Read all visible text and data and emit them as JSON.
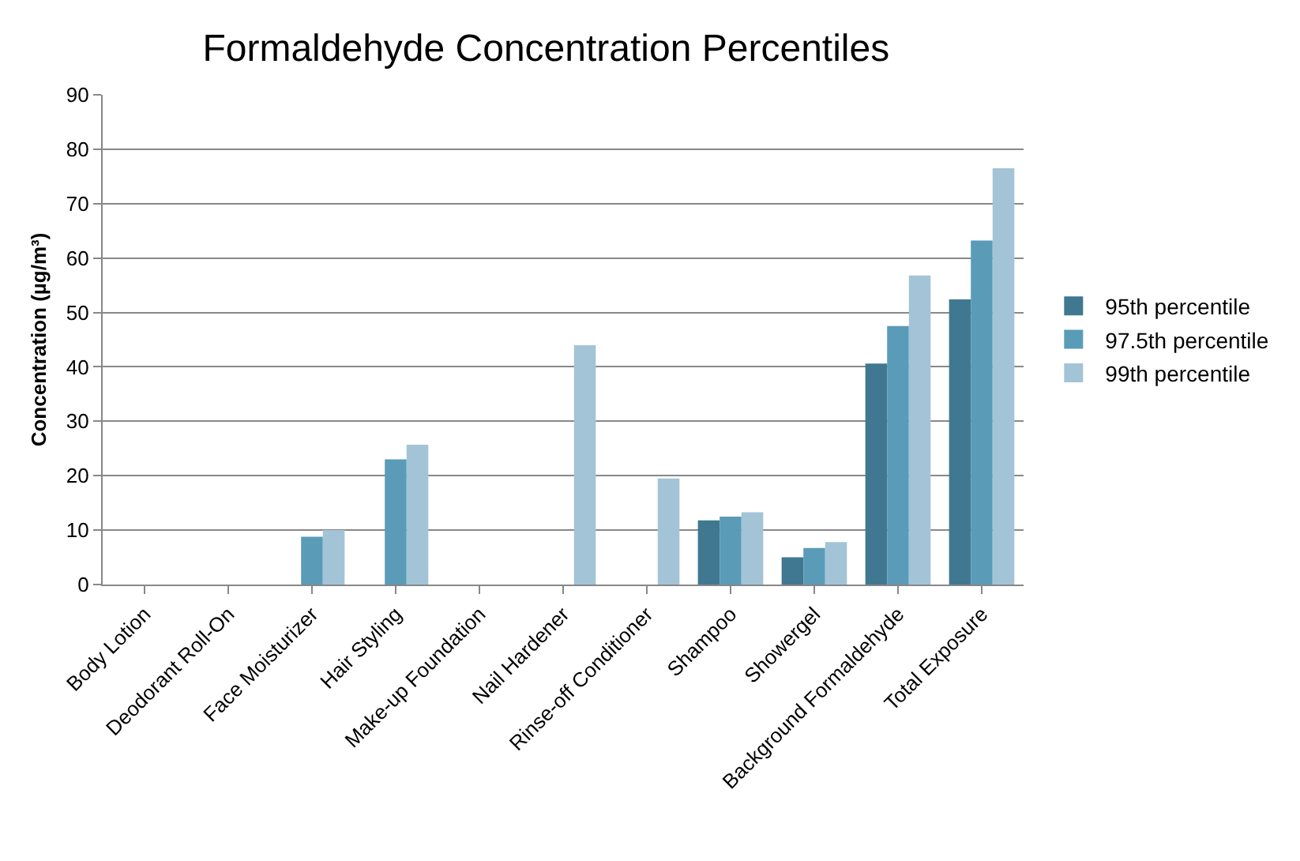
{
  "chart_data": {
    "type": "bar",
    "title": "Formaldehyde Concentration Percentiles",
    "ylabel": "Concentration (µg/m³)",
    "categories": [
      "Body Lotion",
      "Deodorant Roll-On",
      "Face Moisturizer",
      "Hair Styling",
      "Make-up Foundation",
      "Nail Hardener",
      "Rinse-off Conditioner",
      "Shampoo",
      "Showergel",
      "Background Formaldehyde",
      "Total Exposure"
    ],
    "series": [
      {
        "name": "95th percentile",
        "color": "#3f7890",
        "values": [
          null,
          null,
          null,
          null,
          null,
          null,
          null,
          11.8,
          5,
          40.6,
          52.4
        ]
      },
      {
        "name": "97.5th percentile",
        "color": "#5a9bb8",
        "values": [
          null,
          null,
          8.8,
          23,
          null,
          null,
          null,
          12.5,
          6.7,
          47.5,
          63.2
        ]
      },
      {
        "name": "99th percentile",
        "color": "#a3c4d6",
        "values": [
          null,
          null,
          10,
          25.7,
          null,
          44,
          19.5,
          13.3,
          7.8,
          56.8,
          76.5
        ]
      }
    ],
    "ylim": [
      0,
      90
    ],
    "yticks": [
      0,
      10,
      20,
      30,
      40,
      50,
      60,
      70,
      80,
      90
    ],
    "grid": "y",
    "legend": "right"
  }
}
